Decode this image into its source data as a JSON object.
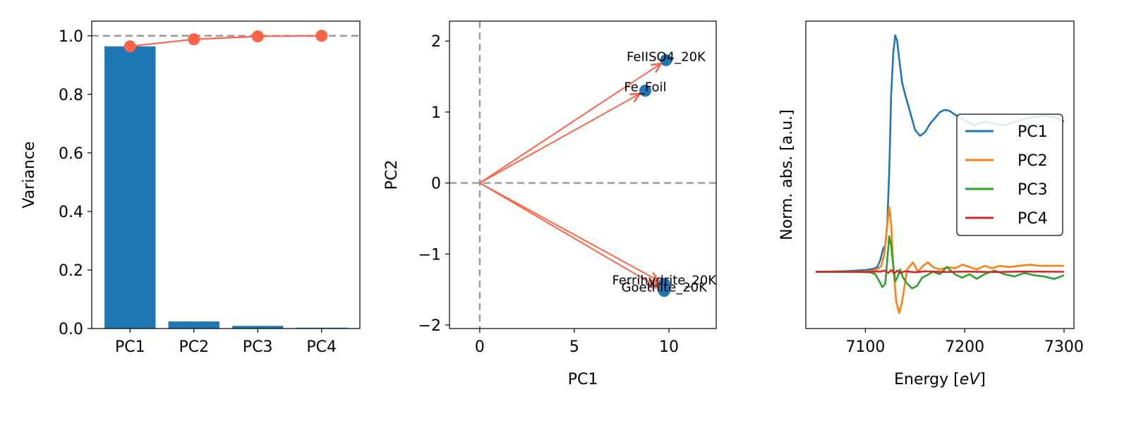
{
  "chart_data": [
    {
      "type": "bar",
      "title": "",
      "xlabel": "",
      "ylabel": "Variance",
      "categories": [
        "PC1",
        "PC2",
        "PC3",
        "PC4"
      ],
      "values": [
        0.964,
        0.024,
        0.009,
        0.003
      ],
      "cumulative": [
        0.964,
        0.988,
        0.998,
        1.0
      ],
      "reference_line": 1.0,
      "ylim": [
        0,
        1.05
      ],
      "yticks": [
        0.0,
        0.2,
        0.4,
        0.6,
        0.8,
        1.0
      ],
      "ytick_labels": [
        "0.0",
        "0.2",
        "0.4",
        "0.6",
        "0.8",
        "1.0"
      ],
      "bar_color": "#1f77b4",
      "line_color": "#ff6347",
      "ref_line_color": "#999999"
    },
    {
      "type": "scatter",
      "title": "",
      "xlabel": "PC1",
      "ylabel": "PC2",
      "xlim": [
        -1.6,
        12.5
      ],
      "ylim": [
        -2.05,
        2.28
      ],
      "xticks": [
        0,
        5,
        10
      ],
      "xtick_labels": [
        "0",
        "5",
        "10"
      ],
      "yticks": [
        -2,
        -1,
        0,
        1,
        2
      ],
      "ytick_labels": [
        "−2",
        "−1",
        "0",
        "1",
        "2"
      ],
      "points": [
        {
          "label": "FeIISO4_20K",
          "x": 9.85,
          "y": 1.73
        },
        {
          "label": "Fe_Foil",
          "x": 8.75,
          "y": 1.3
        },
        {
          "label": "Ferrihydrite_20K",
          "x": 9.75,
          "y": -1.42
        },
        {
          "label": "Goethite_20K",
          "x": 9.75,
          "y": -1.52
        }
      ],
      "point_color": "#1f77b4",
      "arrow_color": "#ff6347",
      "ref_line_color": "#999999"
    },
    {
      "type": "line",
      "title": "",
      "xlabel": "Energy [eV]",
      "xlabel_prefix": "Energy [",
      "xlabel_italic": "eV",
      "xlabel_suffix": "]",
      "ylabel": "Norm. abs. [a.u.]",
      "xlim": [
        7040,
        7310
      ],
      "ylim": [
        -0.48,
        2.12
      ],
      "xticks": [
        7100,
        7200,
        7300
      ],
      "xtick_labels": [
        "7100",
        "7200",
        "7300"
      ],
      "legend_position": "center-right",
      "series": [
        {
          "name": "PC1",
          "color": "#1f77b4",
          "x": [
            7050,
            7080,
            7100,
            7108,
            7112,
            7115,
            7118,
            7120,
            7122,
            7124,
            7126,
            7128,
            7130,
            7132,
            7134,
            7137,
            7140,
            7145,
            7150,
            7155,
            7160,
            7165,
            7170,
            7175,
            7180,
            7185,
            7190,
            7200,
            7210,
            7220,
            7230,
            7240,
            7250,
            7260,
            7270,
            7280,
            7290,
            7300
          ],
          "y": [
            0,
            0.005,
            0.015,
            0.025,
            0.04,
            0.1,
            0.2,
            0.22,
            0.4,
            0.85,
            1.5,
            1.85,
            2.0,
            1.95,
            1.8,
            1.6,
            1.5,
            1.35,
            1.2,
            1.15,
            1.18,
            1.25,
            1.3,
            1.35,
            1.37,
            1.36,
            1.33,
            1.28,
            1.24,
            1.27,
            1.25,
            1.24,
            1.27,
            1.29,
            1.31,
            1.32,
            1.31,
            1.27
          ]
        },
        {
          "name": "PC2",
          "color": "#ff7f0e",
          "x": [
            7050,
            7090,
            7105,
            7112,
            7116,
            7119,
            7122,
            7124,
            7126,
            7128,
            7131,
            7134,
            7137,
            7142,
            7148,
            7153,
            7158,
            7163,
            7168,
            7175,
            7183,
            7190,
            7198,
            7205,
            7212,
            7220,
            7228,
            7235,
            7245,
            7255,
            7265,
            7275,
            7285,
            7300
          ],
          "y": [
            0,
            0,
            0.005,
            0.02,
            0.05,
            0.15,
            0.4,
            0.55,
            0.4,
            0.05,
            -0.25,
            -0.35,
            -0.25,
            0.02,
            0.08,
            0.0,
            0.05,
            0.08,
            0.04,
            0.02,
            0.04,
            0.03,
            0.06,
            0.04,
            0.02,
            0.05,
            0.03,
            0.05,
            0.04,
            0.05,
            0.06,
            0.05,
            0.05,
            0.05
          ]
        },
        {
          "name": "PC3",
          "color": "#2ca02c",
          "x": [
            7050,
            7090,
            7105,
            7110,
            7114,
            7117,
            7120,
            7122,
            7124,
            7126,
            7128,
            7130,
            7132,
            7135,
            7138,
            7142,
            7147,
            7152,
            7157,
            7162,
            7168,
            7175,
            7182,
            7190,
            7197,
            7205,
            7212,
            7220,
            7230,
            7240,
            7250,
            7260,
            7270,
            7280,
            7290,
            7300
          ],
          "y": [
            0,
            -0.002,
            -0.005,
            -0.02,
            -0.08,
            -0.13,
            -0.1,
            0.1,
            0.3,
            0.22,
            0.05,
            -0.08,
            -0.05,
            0.02,
            -0.05,
            -0.1,
            -0.14,
            -0.12,
            -0.05,
            -0.03,
            0.0,
            -0.02,
            0.04,
            -0.02,
            -0.05,
            -0.02,
            -0.06,
            -0.02,
            0.01,
            -0.02,
            -0.04,
            -0.01,
            -0.03,
            -0.04,
            -0.06,
            -0.03
          ]
        },
        {
          "name": "PC4",
          "color": "#d62728",
          "x": [
            7050,
            7100,
            7115,
            7120,
            7123,
            7126,
            7129,
            7132,
            7135,
            7140,
            7150,
            7160,
            7180,
            7200,
            7230,
            7260,
            7300
          ],
          "y": [
            0,
            0,
            0.002,
            0.01,
            -0.01,
            0.015,
            -0.015,
            0.01,
            -0.01,
            0.005,
            -0.004,
            0.004,
            -0.002,
            0.002,
            -0.002,
            0.002,
            0.0
          ]
        }
      ]
    }
  ]
}
